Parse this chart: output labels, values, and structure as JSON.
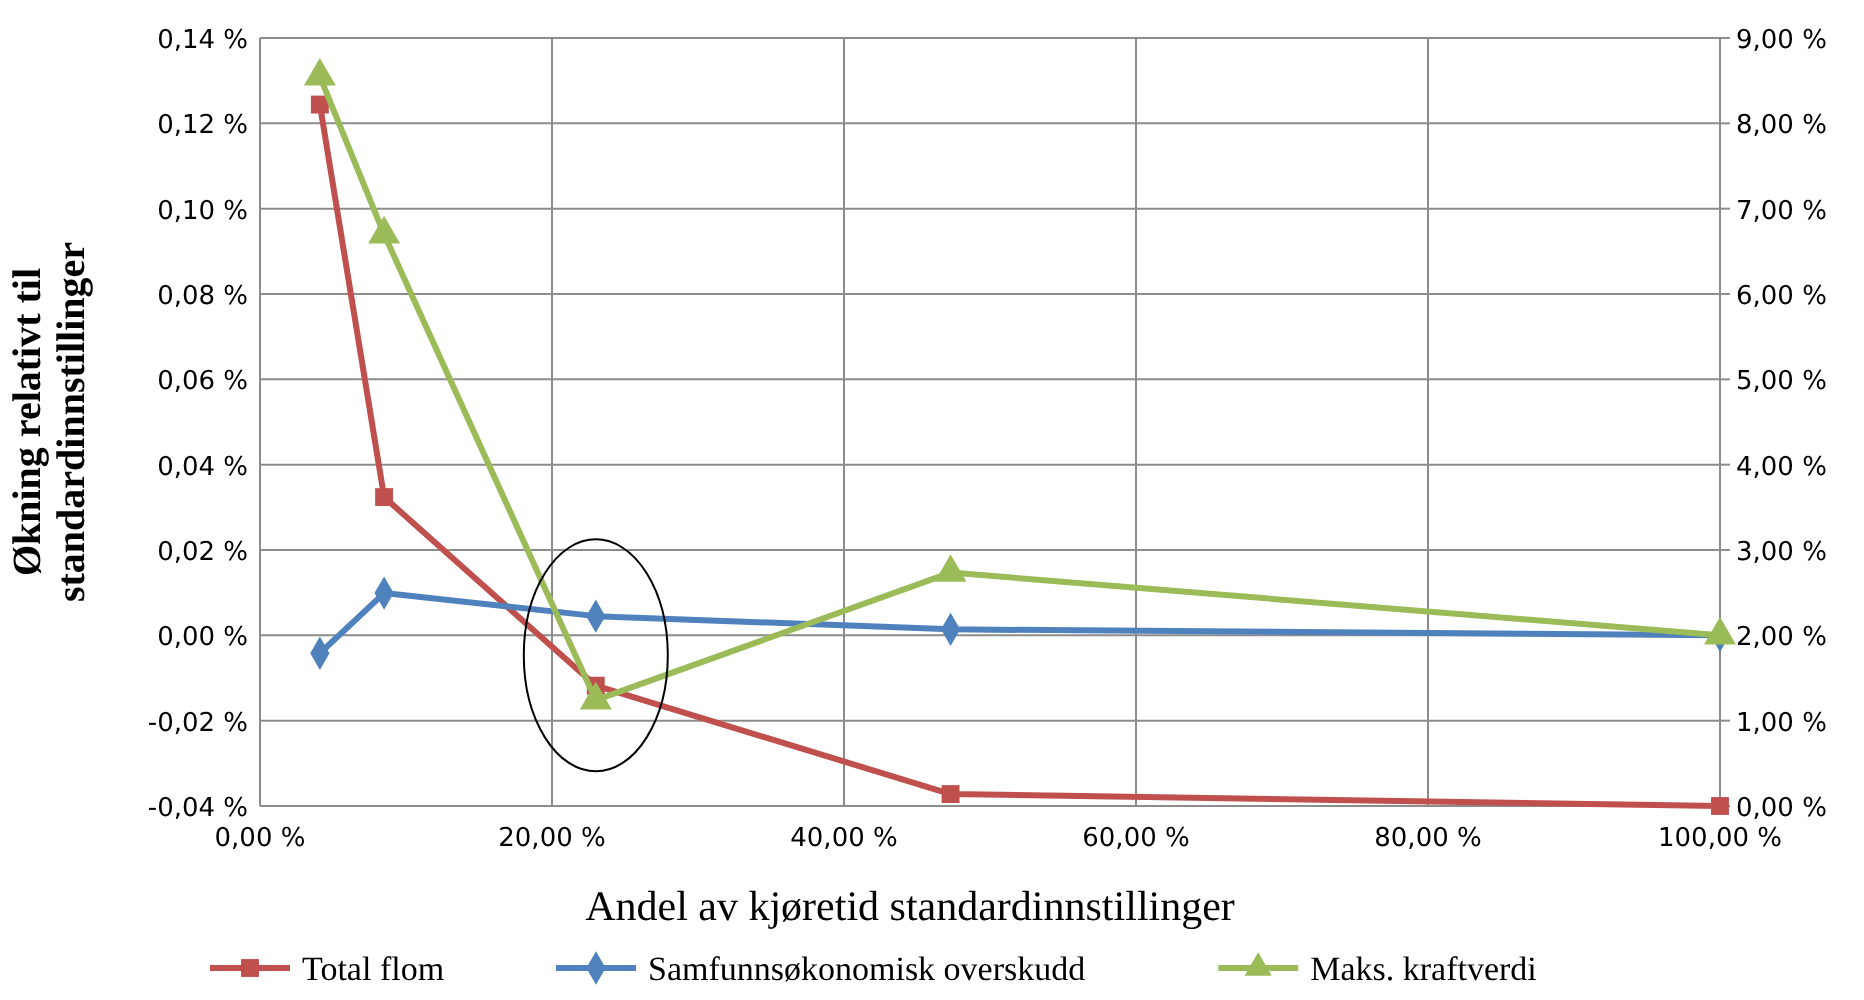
{
  "chart_data": {
    "type": "line",
    "xlabel": "Andel av kjøretid standardinnstillinger",
    "ylabel": "Økning relativt til\nstandardinnstillinger",
    "x": [
      4.1,
      8.5,
      23.0,
      47.3,
      100
    ],
    "xlim": [
      0,
      100
    ],
    "xticks": [
      {
        "value": 0,
        "label": "0,00 %"
      },
      {
        "value": 20,
        "label": "20,00 %"
      },
      {
        "value": 40,
        "label": "40,00 %"
      },
      {
        "value": 60,
        "label": "60,00 %"
      },
      {
        "value": 80,
        "label": "80,00 %"
      },
      {
        "value": 100,
        "label": "100,00 %"
      }
    ],
    "ylim": [
      -0.04,
      0.14
    ],
    "yticks": [
      {
        "value": -0.04,
        "label": "-0,04 %"
      },
      {
        "value": -0.02,
        "label": "-0,02 %"
      },
      {
        "value": 0,
        "label": "0,00 %"
      },
      {
        "value": 0.02,
        "label": "0,02 %"
      },
      {
        "value": 0.04,
        "label": "0,04 %"
      },
      {
        "value": 0.06,
        "label": "0,06 %"
      },
      {
        "value": 0.08,
        "label": "0,08 %"
      },
      {
        "value": 0.1,
        "label": "0,10 %"
      },
      {
        "value": 0.12,
        "label": "0,12 %"
      },
      {
        "value": 0.14,
        "label": "0,14 %"
      }
    ],
    "y2lim": [
      0,
      9
    ],
    "y2ticks": [
      {
        "value": 0,
        "label": "0,00 %"
      },
      {
        "value": 1,
        "label": "1,00 %"
      },
      {
        "value": 2,
        "label": "2,00 %"
      },
      {
        "value": 3,
        "label": "3,00 %"
      },
      {
        "value": 4,
        "label": "4,00 %"
      },
      {
        "value": 5,
        "label": "5,00 %"
      },
      {
        "value": 6,
        "label": "6,00 %"
      },
      {
        "value": 7,
        "label": "7,00 %"
      },
      {
        "value": 8,
        "label": "8,00 %"
      },
      {
        "value": 9,
        "label": "9,00 %"
      }
    ],
    "grid": true,
    "legend": "bottom",
    "line_style": "solid",
    "series": [
      {
        "name": "Total flom",
        "color": "#c0504d",
        "marker": "square",
        "axis": "y2",
        "values": [
          8.22,
          3.62,
          1.41,
          0.14,
          0
        ]
      },
      {
        "name": "Samfunnsøkonomisk overskudd",
        "color": "#4f81bd",
        "marker": "diamond",
        "values": [
          -0.0042,
          0.0099,
          0.0045,
          0.0014,
          0
        ]
      },
      {
        "name": "Maks. kraftverdi",
        "color": "#9bbb59",
        "marker": "triangle",
        "values": [
          0.131,
          0.094,
          -0.0152,
          0.0147,
          0
        ]
      }
    ]
  }
}
